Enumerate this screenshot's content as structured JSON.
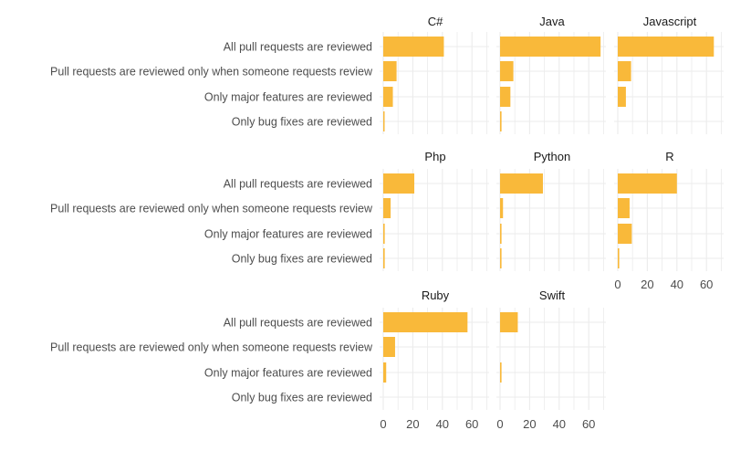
{
  "chart_data": {
    "type": "bar",
    "orientation": "horizontal",
    "facet_layout": "3 columns, wrap",
    "categories": [
      "All pull requests are reviewed",
      "Pull requests are reviewed only when someone requests review",
      "Only major features are reviewed",
      "Only bug fixes are reviewed"
    ],
    "xlim": [
      0,
      70
    ],
    "x_ticks": [
      0,
      20,
      40,
      60
    ],
    "grid": true,
    "bar_color": "#F9B93A",
    "panels": [
      {
        "name": "C#",
        "values": [
          41,
          9,
          6.5,
          0.5
        ]
      },
      {
        "name": "Java",
        "values": [
          68,
          9,
          7,
          1
        ]
      },
      {
        "name": "Javascript",
        "values": [
          65,
          9,
          5.5,
          0
        ]
      },
      {
        "name": "Php",
        "values": [
          21,
          5,
          1,
          1
        ]
      },
      {
        "name": "Python",
        "values": [
          29,
          2,
          1,
          1
        ]
      },
      {
        "name": "R",
        "values": [
          40,
          8,
          9.5,
          1
        ]
      },
      {
        "name": "Ruby",
        "values": [
          57,
          8,
          2,
          0
        ]
      },
      {
        "name": "Swift",
        "values": [
          12,
          0,
          1,
          0
        ]
      }
    ],
    "title": "",
    "xlabel": "",
    "ylabel": ""
  }
}
